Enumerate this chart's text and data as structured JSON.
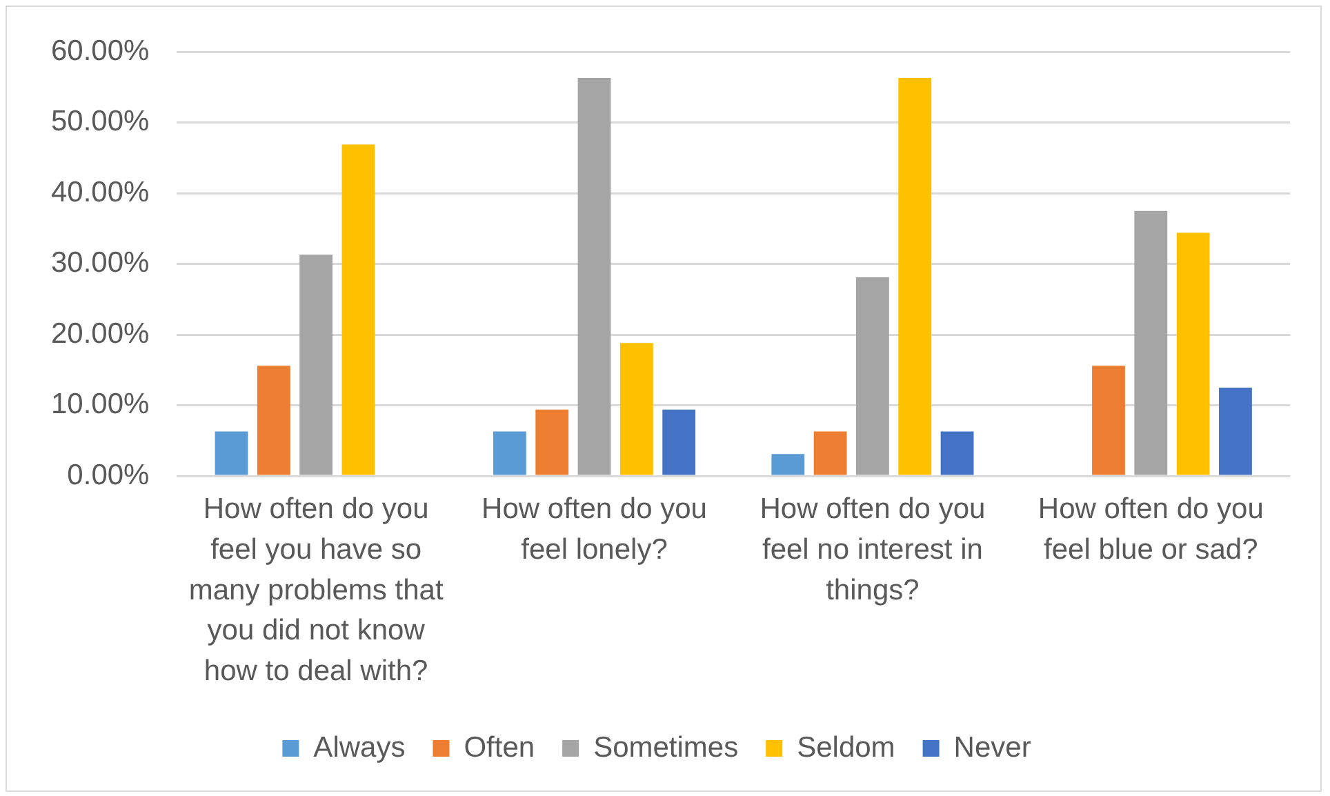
{
  "chart_data": {
    "type": "bar",
    "categories": [
      "How often do you feel you have so many problems that you did not know how to deal with?",
      "How often do you feel lonely?",
      "How often do you feel no interest in things?",
      "How often do you feel blue or sad?"
    ],
    "series": [
      {
        "name": "Always",
        "color": "#5b9bd5",
        "values": [
          6.3,
          6.3,
          3.1,
          0
        ]
      },
      {
        "name": "Often",
        "color": "#ed7d31",
        "values": [
          15.6,
          9.4,
          6.3,
          15.6
        ]
      },
      {
        "name": "Sometimes",
        "color": "#a5a5a5",
        "values": [
          31.3,
          56.3,
          28.1,
          37.5
        ]
      },
      {
        "name": "Seldom",
        "color": "#ffc000",
        "values": [
          46.9,
          18.8,
          56.3,
          34.4
        ]
      },
      {
        "name": "Never",
        "color": "#4472c4",
        "values": [
          0,
          9.4,
          6.3,
          12.5
        ]
      }
    ],
    "ylim": [
      0,
      60
    ],
    "yticks": [
      {
        "value": 0,
        "label": "0.00%"
      },
      {
        "value": 10,
        "label": "10.00%"
      },
      {
        "value": 20,
        "label": "20.00%"
      },
      {
        "value": 30,
        "label": "30.00%"
      },
      {
        "value": 40,
        "label": "40.00%"
      },
      {
        "value": 50,
        "label": "50.00%"
      },
      {
        "value": 60,
        "label": "60.00%"
      }
    ],
    "grid": "y",
    "legend": "bottom"
  }
}
